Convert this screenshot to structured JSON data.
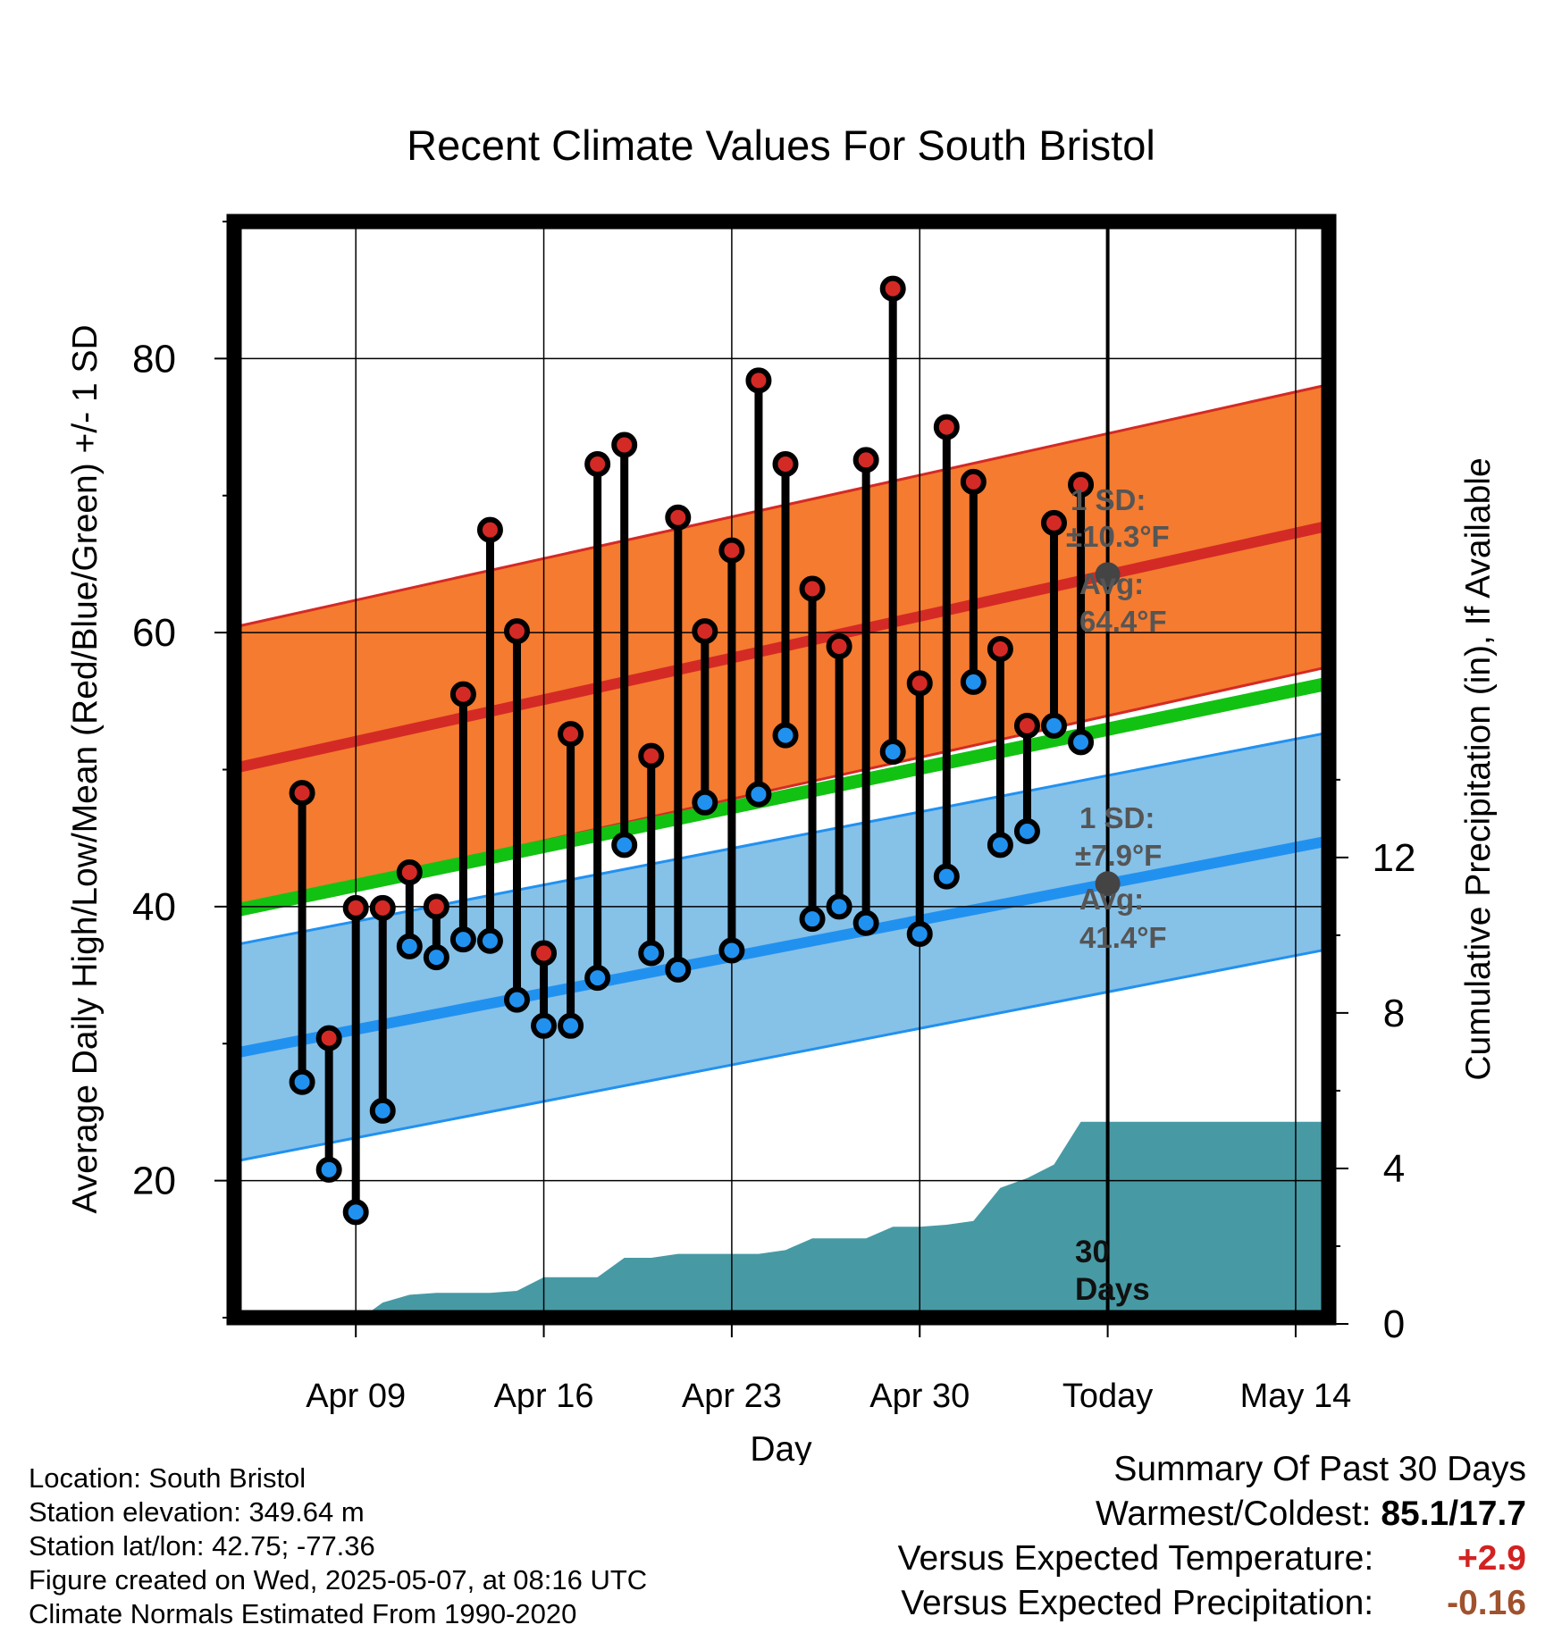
{
  "chart_data": {
    "type": "line",
    "title": "Recent Climate Values For South Bristol",
    "xlabel": "Day",
    "ylabel": "Average Daily High/Low/Mean (Red/Blue/Green) +/- 1 SD",
    "y2label": "Cumulative Precipitation (in), If Available",
    "ylim": [
      10,
      90
    ],
    "y2lim": [
      0,
      28.2
    ],
    "y_ticks": [
      "20",
      "40",
      "60",
      "80"
    ],
    "y2_ticks": [
      "0",
      "4",
      "8",
      "12"
    ],
    "x_ticks": [
      "Apr 09",
      "Apr 16",
      "Apr 23",
      "Apr 30",
      "Today",
      "May 14"
    ],
    "x_range": [
      "2025-04-05",
      "2025-05-17"
    ],
    "today": "2025-05-07",
    "grid": true,
    "days": [
      "2025-04-07",
      "2025-04-08",
      "2025-04-09",
      "2025-04-10",
      "2025-04-11",
      "2025-04-12",
      "2025-04-13",
      "2025-04-14",
      "2025-04-15",
      "2025-04-16",
      "2025-04-17",
      "2025-04-18",
      "2025-04-19",
      "2025-04-20",
      "2025-04-21",
      "2025-04-22",
      "2025-04-23",
      "2025-04-24",
      "2025-04-25",
      "2025-04-26",
      "2025-04-27",
      "2025-04-28",
      "2025-04-29",
      "2025-04-30",
      "2025-05-01",
      "2025-05-02",
      "2025-05-03",
      "2025-05-04",
      "2025-05-05",
      "2025-05-06"
    ],
    "daily_high": [
      48.3,
      30.4,
      39.9,
      39.9,
      42.5,
      40.0,
      55.5,
      67.5,
      60.1,
      36.6,
      52.6,
      72.3,
      73.7,
      51.0,
      68.4,
      60.1,
      66.0,
      78.4,
      72.3,
      63.2,
      59.0,
      72.6,
      85.1,
      56.3,
      75.0,
      71.0,
      58.8,
      53.2,
      68.0,
      70.8
    ],
    "daily_low": [
      27.2,
      20.8,
      17.7,
      25.1,
      37.1,
      36.3,
      37.6,
      37.5,
      33.2,
      31.3,
      31.3,
      34.8,
      44.5,
      36.6,
      35.4,
      47.6,
      36.8,
      48.2,
      52.5,
      39.1,
      40.0,
      38.8,
      51.3,
      38.0,
      42.2,
      56.4,
      44.5,
      45.5,
      53.2,
      52.0
    ],
    "normal_high": {
      "name": "Avg: 64.4°F",
      "start": 50.1,
      "end": 67.8,
      "sd": 10.3
    },
    "normal_low": {
      "name": "Avg: 41.4°F",
      "start": 29.3,
      "end": 44.8,
      "sd": 7.9
    },
    "normal_mean": {
      "start": 39.7,
      "end": 56.3
    },
    "precip_cumulative": [
      0,
      0,
      0.05,
      0.55,
      0.75,
      0.8,
      0.8,
      0.8,
      0.85,
      1.2,
      1.2,
      1.2,
      1.7,
      1.7,
      1.8,
      1.8,
      1.8,
      1.8,
      1.9,
      2.2,
      2.2,
      2.2,
      2.5,
      2.5,
      2.55,
      2.65,
      3.5,
      3.75,
      4.1,
      5.2,
      5.2
    ],
    "annotations": {
      "high_sd": [
        "1 SD:",
        "±10.3°F"
      ],
      "high_avg": [
        "Avg:",
        "64.4°F"
      ],
      "low_sd": [
        "1 SD:",
        "±7.9°F"
      ],
      "low_avg": [
        "Avg:",
        "41.4°F"
      ],
      "days_label": [
        "30",
        "Days"
      ]
    },
    "colors": {
      "high_band": "#f47b2f",
      "high_line": "#d42a25",
      "low_band": "#86c1e8",
      "low_line": "#2191f0",
      "mean_line": "#12c212",
      "precip": "#479aa4",
      "marker_high": "#d42a25",
      "marker_low": "#2191f0",
      "annotation": "#555555"
    }
  },
  "footer": {
    "location": "Location: South Bristol",
    "elevation": "Station elevation: 349.64 m",
    "latlon": "Station lat/lon: 42.75; -77.36",
    "created": "Figure created on Wed, 2025-05-07, at 08:16 UTC",
    "normals": "Climate Normals Estimated From 1990-2020"
  },
  "summary": {
    "title": "Summary Of Past 30 Days",
    "warmest_label": "Warmest/Coldest:",
    "warmest_value": "85.1/17.7",
    "temp_label": "Versus Expected Temperature:",
    "temp_value": "+2.9",
    "precip_label": "Versus Expected Precipitation:",
    "precip_value": "-0.16"
  }
}
